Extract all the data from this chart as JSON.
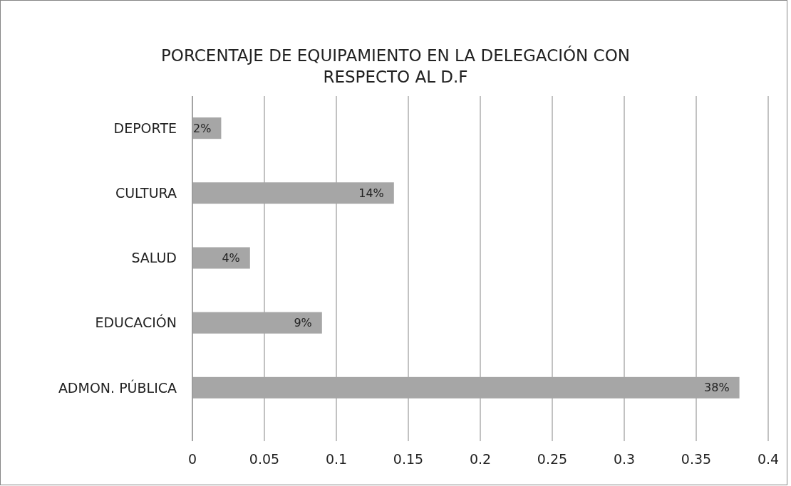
{
  "chart_data": {
    "type": "bar",
    "orientation": "horizontal",
    "title": "PORCENTAJE DE EQUIPAMIENTO EN LA DELEGACIÓN CON RESPECTO AL D.F",
    "categories": [
      "DEPORTE",
      "CULTURA",
      "SALUD",
      "EDUCACIÓN",
      "ADMON. PÚBLICA"
    ],
    "values": [
      0.02,
      0.14,
      0.04,
      0.09,
      0.38
    ],
    "value_labels": [
      "2%",
      "14%",
      "4%",
      "9%",
      "38%"
    ],
    "color": "#a6a6a6",
    "xlim": [
      0,
      0.4
    ],
    "xticks": [
      0,
      0.05,
      0.1,
      0.15,
      0.2,
      0.25,
      0.3,
      0.35,
      0.4
    ],
    "grid": "x"
  }
}
